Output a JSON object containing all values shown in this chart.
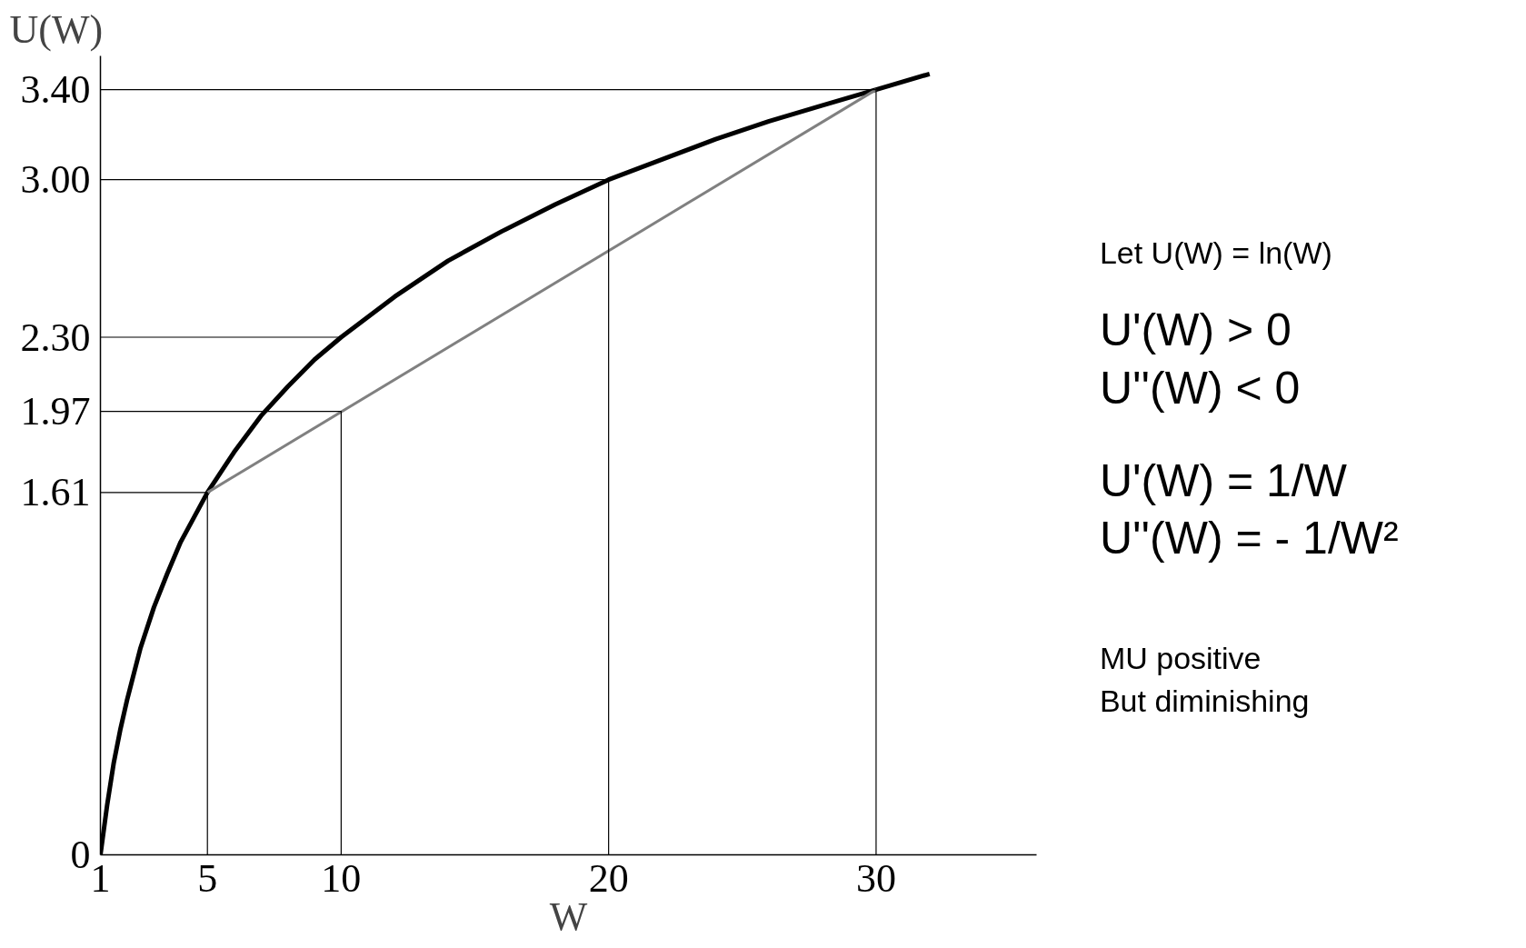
{
  "chart_data": {
    "type": "line",
    "xlabel": "W",
    "ylabel": "U(W)",
    "xlim": [
      1,
      36
    ],
    "ylim": [
      0,
      3.55
    ],
    "xticks": [
      1,
      5,
      10,
      20,
      30
    ],
    "yticks": [
      0,
      1.61,
      1.97,
      {
        "value": 2.3,
        "label": "2.30"
      },
      {
        "value": 3.0,
        "label": "3.00"
      },
      {
        "value": 3.4,
        "label": "3.40"
      }
    ],
    "grid": false,
    "series": [
      {
        "color": "#000000",
        "x": [
          1,
          1.25,
          1.5,
          1.75,
          2,
          2.5,
          3,
          3.5,
          4,
          5,
          6,
          7,
          8,
          9,
          10,
          12,
          14,
          16,
          18,
          20,
          22,
          24,
          26,
          28,
          30,
          32
        ],
        "values": [
          0,
          0.22,
          0.41,
          0.56,
          0.69,
          0.92,
          1.1,
          1.25,
          1.39,
          1.61,
          1.79,
          1.95,
          2.08,
          2.2,
          2.3,
          2.48,
          2.64,
          2.77,
          2.89,
          3.0,
          3.09,
          3.18,
          3.26,
          3.33,
          3.4,
          3.47
        ]
      },
      {
        "color": "#808080",
        "x": [
          5,
          30
        ],
        "values": [
          1.61,
          3.4
        ]
      },
      {
        "color": "#000000",
        "x": [
          1,
          5,
          5
        ],
        "values": [
          1.61,
          1.61,
          0
        ]
      },
      {
        "color": "#000000",
        "x": [
          1,
          10,
          10
        ],
        "values": [
          1.97,
          1.97,
          0
        ]
      },
      {
        "color": "#000000",
        "x": [
          1,
          10
        ],
        "values": [
          2.3,
          2.3
        ]
      },
      {
        "color": "#000000",
        "x": [
          1,
          20,
          20
        ],
        "values": [
          3.0,
          3.0,
          0
        ]
      },
      {
        "color": "#000000",
        "x": [
          1,
          30,
          30
        ],
        "values": [
          3.4,
          3.4,
          0
        ]
      }
    ],
    "annotations": [
      "Let U(W) = ln(W)",
      "U'(W) > 0",
      "U''(W) < 0",
      "U'(W) = 1/W",
      "U''(W) = - 1/W²",
      "MU positive",
      "But diminishing"
    ]
  }
}
